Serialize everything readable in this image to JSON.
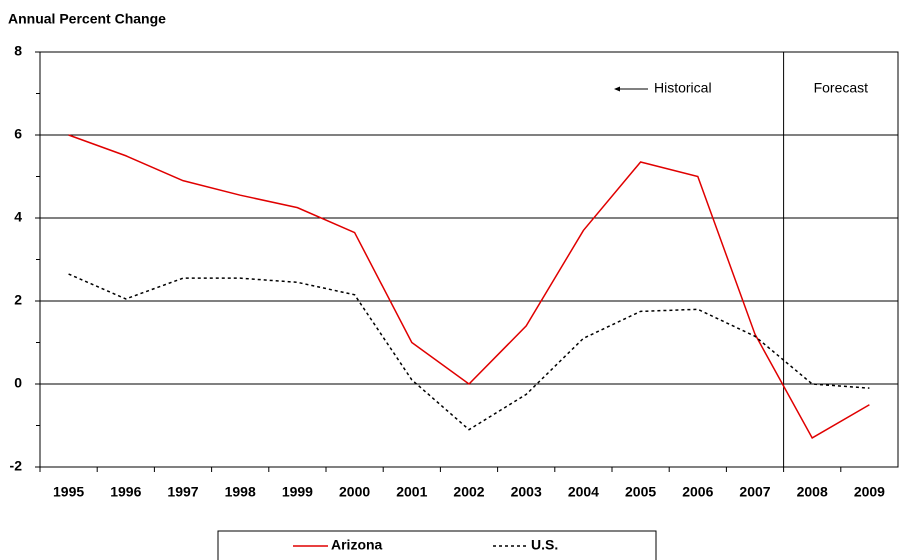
{
  "chart_data": {
    "type": "line",
    "title": "Annual Percent Change",
    "categories": [
      "1995",
      "1996",
      "1997",
      "1998",
      "1999",
      "2000",
      "2001",
      "2002",
      "2003",
      "2004",
      "2005",
      "2006",
      "2007",
      "2008",
      "2009"
    ],
    "series": [
      {
        "name": "Arizona",
        "color": "#e00000",
        "dash": "solid",
        "values": [
          6.0,
          5.5,
          4.9,
          4.55,
          4.25,
          3.65,
          1.0,
          0.0,
          1.4,
          3.7,
          5.35,
          5.0,
          1.2,
          -1.3,
          -0.5
        ]
      },
      {
        "name": "U.S.",
        "color": "#000000",
        "dash": "dotted",
        "values": [
          2.65,
          2.05,
          2.55,
          2.55,
          2.45,
          2.15,
          0.1,
          -1.1,
          -0.25,
          1.1,
          1.75,
          1.8,
          1.15,
          0.0,
          -0.1
        ]
      }
    ],
    "ylim": [
      -2,
      8
    ],
    "yticks": [
      -2,
      0,
      2,
      4,
      6,
      8
    ],
    "minor_yticks": [
      -1,
      1,
      3,
      5,
      7
    ],
    "grid": true,
    "annotations": [
      "Historical",
      "Forecast"
    ],
    "legend": "bottom"
  }
}
